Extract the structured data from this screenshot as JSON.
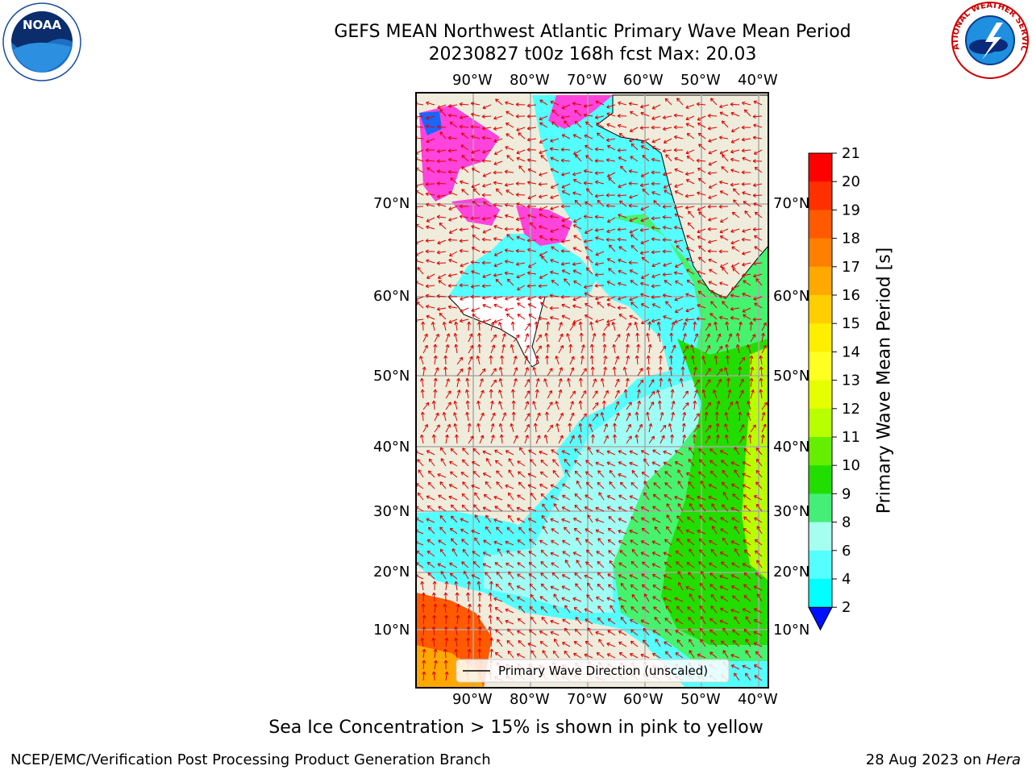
{
  "title": {
    "line1": "GEFS MEAN Northwest Atlantic Primary Wave Mean Period",
    "line2": "20230827 t00z 168h fcst   Max: 20.03"
  },
  "map": {
    "lon_labels": [
      "90°W",
      "80°W",
      "70°W",
      "60°W",
      "50°W",
      "40°W"
    ],
    "lat_labels": [
      "70°N",
      "60°N",
      "50°N",
      "40°N",
      "30°N",
      "20°N",
      "10°N"
    ],
    "legend_label": "Primary Wave Direction (unscaled)",
    "colors": {
      "land": "#efecdb",
      "ocean_short": "#54ffff",
      "ocean_mid": "#9ffff4",
      "ocean_long": "#45f36f",
      "arrows": "#e00000",
      "ice": "#ff44dd"
    }
  },
  "colorbar": {
    "label": "Primary Wave Mean Period [s]",
    "ticks": [
      "21",
      "20",
      "19",
      "18",
      "17",
      "16",
      "15",
      "14",
      "13",
      "12",
      "11",
      "10",
      "9",
      "8",
      "6",
      "4",
      "2"
    ],
    "colors": [
      "#ff0000",
      "#ff3000",
      "#ff5a00",
      "#ff8000",
      "#ffa800",
      "#ffce00",
      "#ffee00",
      "#ffff22",
      "#e6ff00",
      "#b8ff00",
      "#66ee00",
      "#22dd00",
      "#44ee77",
      "#a6ffee",
      "#55ffff",
      "#00ffff",
      "#0082ff"
    ],
    "extend_color": "#0010ff"
  },
  "logos": {
    "noaa_text": "NOAA",
    "nws_text": "NATIONAL WEATHER SERVICE"
  },
  "footer": {
    "note": "Sea Ice Concentration > 15% is shown in pink to yellow",
    "credit_left": "NCEP/EMC/Verification Post Processing Product Generation Branch",
    "credit_date": "28 Aug 2023 on ",
    "credit_host": "Hera"
  }
}
